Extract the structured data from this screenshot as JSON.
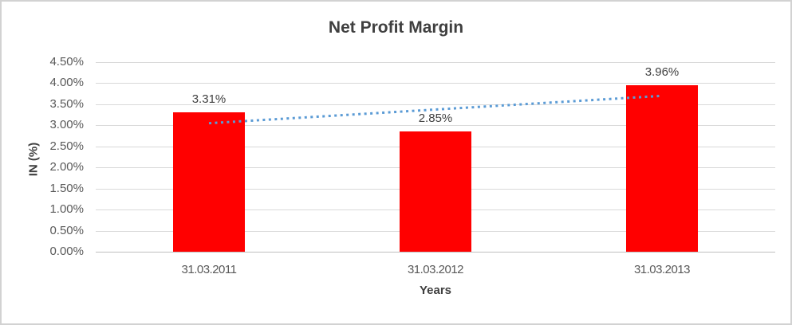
{
  "frame": {
    "background": "#ffffff",
    "border_color": "#d2d2d2"
  },
  "chart_data": {
    "type": "bar",
    "title": "Net Profit Margin",
    "xlabel": "Years",
    "ylabel": "IN (%)",
    "categories": [
      "31.03.2011",
      "31.03.2012",
      "31.03.2013"
    ],
    "values": [
      3.31,
      2.85,
      3.96
    ],
    "value_labels": [
      "3.31%",
      "2.85%",
      "3.96%"
    ],
    "y_ticks": [
      "0.00%",
      "0.50%",
      "1.00%",
      "1.50%",
      "2.00%",
      "2.50%",
      "3.00%",
      "3.50%",
      "4.00%",
      "4.50%"
    ],
    "y_tick_values": [
      0,
      0.5,
      1,
      1.5,
      2,
      2.5,
      3,
      3.5,
      4,
      4.5
    ],
    "ylim": [
      0,
      4.5
    ],
    "grid": true,
    "legend": false,
    "bar_color": "#ff0000",
    "trendline": {
      "type": "linear",
      "style": "dotted",
      "color": "#5b9bd5",
      "start_value": 3.05,
      "end_value": 3.7
    }
  }
}
